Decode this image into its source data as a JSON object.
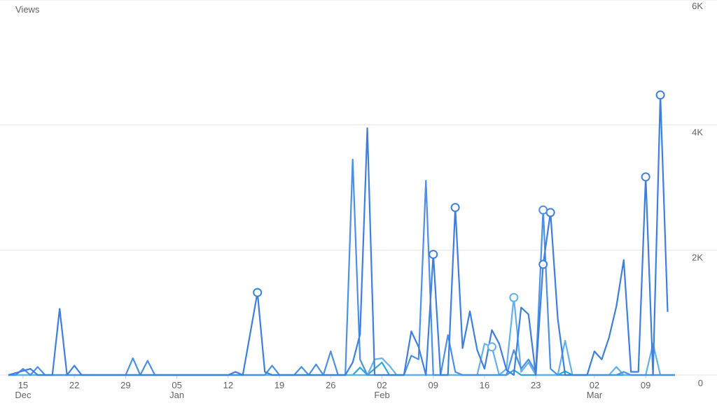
{
  "chart_data": {
    "type": "line",
    "ylabel": "Views",
    "ylim": [
      0,
      6000
    ],
    "yticks": [
      {
        "value": 0,
        "label": "0"
      },
      {
        "value": 2000,
        "label": "2K"
      },
      {
        "value": 4000,
        "label": "4K"
      },
      {
        "value": 6000,
        "label": "6K"
      }
    ],
    "x_start": "2023-12-13",
    "x_end": "2024-03-13",
    "xticks": [
      {
        "date": "2023-12-15",
        "label": "15",
        "month": "Dec"
      },
      {
        "date": "2023-12-22",
        "label": "22",
        "month": ""
      },
      {
        "date": "2023-12-29",
        "label": "29",
        "month": ""
      },
      {
        "date": "2024-01-05",
        "label": "05",
        "month": "Jan"
      },
      {
        "date": "2024-01-12",
        "label": "12",
        "month": ""
      },
      {
        "date": "2024-01-19",
        "label": "19",
        "month": ""
      },
      {
        "date": "2024-01-26",
        "label": "26",
        "month": ""
      },
      {
        "date": "2024-02-02",
        "label": "02",
        "month": "Feb"
      },
      {
        "date": "2024-02-09",
        "label": "09",
        "month": ""
      },
      {
        "date": "2024-02-16",
        "label": "16",
        "month": ""
      },
      {
        "date": "2024-02-23",
        "label": "23",
        "month": ""
      },
      {
        "date": "2024-03-02",
        "label": "02",
        "month": "Mar"
      },
      {
        "date": "2024-03-09",
        "label": "09",
        "month": ""
      }
    ],
    "grid": true,
    "series": [
      {
        "color": "#3d7fe0",
        "points": [
          [
            "2023-12-13",
            0
          ],
          [
            "2023-12-16",
            100
          ],
          [
            "2023-12-17",
            0
          ],
          [
            "2023-12-19",
            0
          ],
          [
            "2023-12-20",
            1060
          ],
          [
            "2023-12-21",
            0
          ],
          [
            "2023-12-22",
            150
          ],
          [
            "2023-12-23",
            0
          ],
          [
            "2024-01-12",
            0
          ],
          [
            "2024-01-13",
            50
          ],
          [
            "2024-01-14",
            0
          ],
          [
            "2024-01-16",
            1320
          ],
          [
            "2024-01-17",
            50
          ],
          [
            "2024-01-18",
            0
          ],
          [
            "2024-01-28",
            0
          ],
          [
            "2024-01-29",
            200
          ],
          [
            "2024-01-30",
            650
          ],
          [
            "2024-01-31",
            3950
          ],
          [
            "2024-02-01",
            0
          ],
          [
            "2024-02-05",
            0
          ],
          [
            "2024-02-06",
            700
          ],
          [
            "2024-02-07",
            450
          ],
          [
            "2024-02-08",
            0
          ],
          [
            "2024-02-09",
            1930
          ],
          [
            "2024-02-10",
            0
          ],
          [
            "2024-02-11",
            0
          ],
          [
            "2024-02-12",
            2680
          ],
          [
            "2024-02-13",
            430
          ],
          [
            "2024-02-14",
            1020
          ],
          [
            "2024-02-15",
            400
          ],
          [
            "2024-02-16",
            100
          ],
          [
            "2024-02-17",
            720
          ],
          [
            "2024-02-18",
            500
          ],
          [
            "2024-02-19",
            80
          ],
          [
            "2024-02-20",
            0
          ],
          [
            "2024-02-21",
            1080
          ],
          [
            "2024-02-22",
            970
          ],
          [
            "2024-02-23",
            0
          ],
          [
            "2024-02-24",
            1770
          ],
          [
            "2024-02-25",
            2600
          ],
          [
            "2024-02-26",
            900
          ],
          [
            "2024-02-27",
            0
          ],
          [
            "2024-03-01",
            0
          ],
          [
            "2024-03-02",
            380
          ],
          [
            "2024-03-03",
            250
          ],
          [
            "2024-03-04",
            600
          ],
          [
            "2024-03-05",
            1100
          ],
          [
            "2024-03-06",
            1840
          ],
          [
            "2024-03-07",
            50
          ],
          [
            "2024-03-08",
            50
          ],
          [
            "2024-03-09",
            3170
          ],
          [
            "2024-03-10",
            0
          ],
          [
            "2024-03-11",
            4480
          ],
          [
            "2024-03-12",
            1010
          ]
        ],
        "markers": [
          "2024-01-16",
          "2024-02-09",
          "2024-02-12",
          "2024-02-24",
          "2024-02-25",
          "2024-03-09",
          "2024-03-11"
        ]
      },
      {
        "color": "#4a90e6",
        "points": [
          [
            "2023-12-13",
            0
          ],
          [
            "2023-12-14",
            0
          ],
          [
            "2023-12-15",
            100
          ],
          [
            "2023-12-16",
            0
          ],
          [
            "2023-12-17",
            130
          ],
          [
            "2023-12-18",
            0
          ],
          [
            "2023-12-29",
            0
          ],
          [
            "2023-12-30",
            270
          ],
          [
            "2023-12-31",
            0
          ],
          [
            "2024-01-01",
            230
          ],
          [
            "2024-01-02",
            0
          ],
          [
            "2024-01-17",
            0
          ],
          [
            "2024-01-18",
            150
          ],
          [
            "2024-01-19",
            0
          ],
          [
            "2024-01-21",
            0
          ],
          [
            "2024-01-22",
            130
          ],
          [
            "2024-01-23",
            0
          ],
          [
            "2024-01-24",
            170
          ],
          [
            "2024-01-25",
            0
          ],
          [
            "2024-01-26",
            380
          ],
          [
            "2024-01-27",
            0
          ],
          [
            "2024-01-28",
            0
          ],
          [
            "2024-01-29",
            3450
          ],
          [
            "2024-01-30",
            250
          ],
          [
            "2024-01-31",
            0
          ],
          [
            "2024-02-05",
            0
          ],
          [
            "2024-02-06",
            310
          ],
          [
            "2024-02-07",
            250
          ],
          [
            "2024-02-08",
            3110
          ],
          [
            "2024-02-09",
            0
          ],
          [
            "2024-02-10",
            0
          ],
          [
            "2024-02-11",
            640
          ],
          [
            "2024-02-12",
            50
          ],
          [
            "2024-02-13",
            0
          ],
          [
            "2024-02-19",
            0
          ],
          [
            "2024-02-20",
            400
          ],
          [
            "2024-02-21",
            100
          ],
          [
            "2024-02-22",
            250
          ],
          [
            "2024-02-23",
            50
          ],
          [
            "2024-02-24",
            2640
          ],
          [
            "2024-02-25",
            100
          ],
          [
            "2024-02-26",
            0
          ],
          [
            "2024-03-05",
            0
          ],
          [
            "2024-03-06",
            50
          ],
          [
            "2024-03-07",
            0
          ],
          [
            "2024-03-13",
            0
          ]
        ],
        "markers": [
          "2024-02-24"
        ]
      },
      {
        "color": "#62b0ec",
        "points": [
          [
            "2023-12-13",
            0
          ],
          [
            "2024-01-31",
            0
          ],
          [
            "2024-02-01",
            250
          ],
          [
            "2024-02-02",
            270
          ],
          [
            "2024-02-03",
            150
          ],
          [
            "2024-02-04",
            0
          ],
          [
            "2024-02-15",
            0
          ],
          [
            "2024-02-16",
            500
          ],
          [
            "2024-02-17",
            450
          ],
          [
            "2024-02-18",
            0
          ],
          [
            "2024-02-19",
            100
          ],
          [
            "2024-02-20",
            1240
          ],
          [
            "2024-02-21",
            50
          ],
          [
            "2024-02-22",
            200
          ],
          [
            "2024-02-23",
            0
          ],
          [
            "2024-02-26",
            0
          ],
          [
            "2024-02-27",
            550
          ],
          [
            "2024-02-28",
            0
          ],
          [
            "2024-03-04",
            0
          ],
          [
            "2024-03-05",
            130
          ],
          [
            "2024-03-06",
            0
          ],
          [
            "2024-03-09",
            0
          ],
          [
            "2024-03-10",
            500
          ],
          [
            "2024-03-11",
            0
          ],
          [
            "2024-03-13",
            0
          ]
        ],
        "markers": [
          "2024-02-17",
          "2024-02-20"
        ]
      },
      {
        "color": "#29a8e0",
        "points": [
          [
            "2023-12-13",
            0
          ],
          [
            "2024-01-29",
            0
          ],
          [
            "2024-01-30",
            120
          ],
          [
            "2024-01-31",
            0
          ],
          [
            "2024-02-02",
            200
          ],
          [
            "2024-02-03",
            0
          ],
          [
            "2024-02-19",
            0
          ],
          [
            "2024-02-20",
            80
          ],
          [
            "2024-02-21",
            0
          ],
          [
            "2024-02-26",
            0
          ],
          [
            "2024-02-27",
            60
          ],
          [
            "2024-02-28",
            0
          ],
          [
            "2024-03-13",
            0
          ]
        ],
        "markers": []
      }
    ]
  }
}
